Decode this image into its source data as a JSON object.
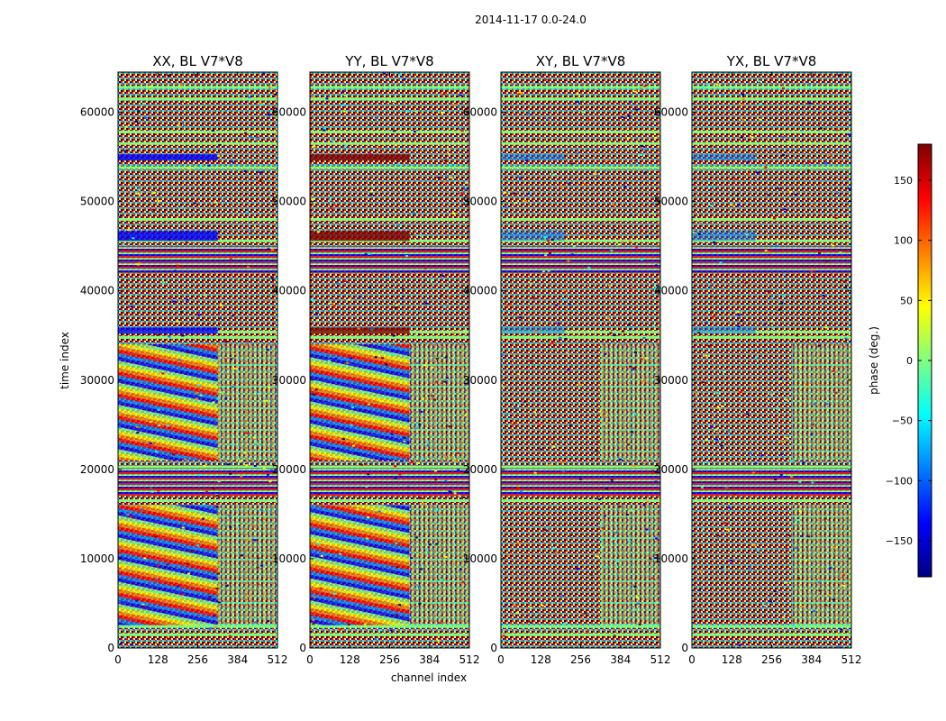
{
  "suptitle": "2014-11-17 0.0-24.0",
  "xlabel": "channel index",
  "ylabel": "time index",
  "colorbar": {
    "label": "phase (deg.)",
    "range": [
      -180,
      180
    ],
    "ticks": [
      "150",
      "100",
      "50",
      "0",
      "−50",
      "−100",
      "−150"
    ],
    "tick_values": [
      150,
      100,
      50,
      0,
      -50,
      -100,
      -150
    ],
    "colormap": [
      "#00007f",
      "#0000ff",
      "#007fff",
      "#00ffff",
      "#7fff7f",
      "#ffff00",
      "#ff7f00",
      "#ff0000",
      "#7f0000"
    ]
  },
  "chart_data": {
    "type": "heatmap",
    "description_units": "phase in degrees vs channel index and time index",
    "panels": [
      {
        "title": "XX, BL V7*V8"
      },
      {
        "title": "YY, BL V7*V8"
      },
      {
        "title": "XY, BL V7*V8"
      },
      {
        "title": "YX, BL V7*V8"
      }
    ],
    "xlim": [
      0,
      512
    ],
    "ylim": [
      0,
      64000
    ],
    "xticks": [
      0,
      128,
      256,
      384,
      512
    ],
    "xtick_labels": [
      "0",
      "128",
      "256",
      "384",
      "512"
    ],
    "yticks": [
      0,
      10000,
      20000,
      30000,
      40000,
      50000,
      60000
    ],
    "ytick_labels": [
      "0",
      "10000",
      "20000",
      "30000",
      "40000",
      "50000",
      "60000"
    ]
  }
}
